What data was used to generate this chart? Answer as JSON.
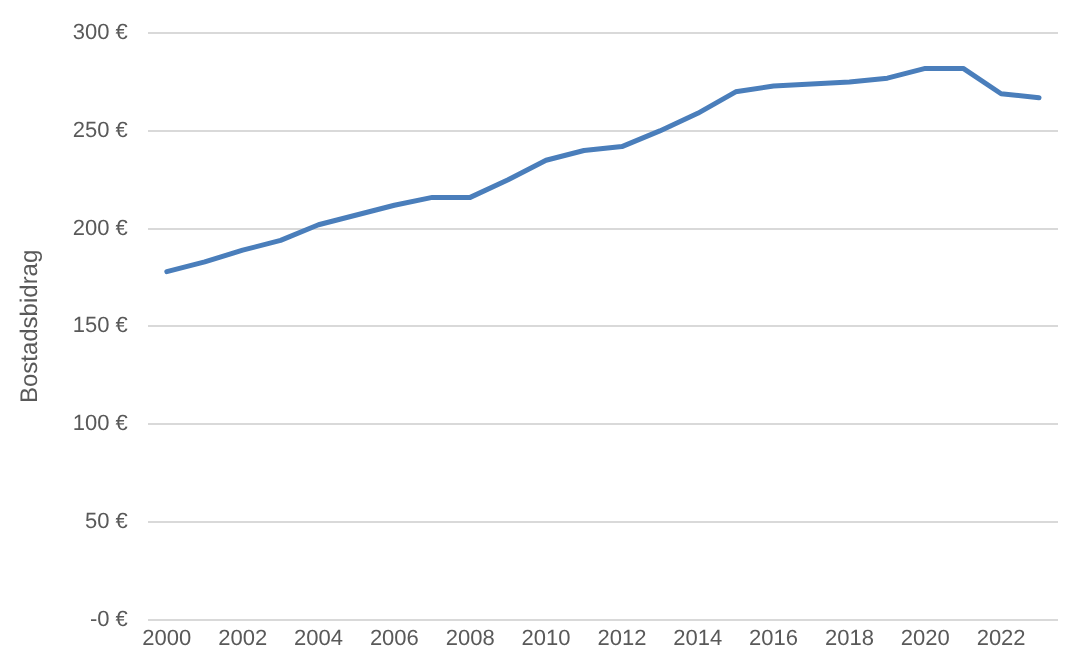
{
  "chart_data": {
    "type": "line",
    "ylabel": "Bostadsbidrag",
    "x": [
      2000,
      2001,
      2002,
      2003,
      2004,
      2005,
      2006,
      2007,
      2008,
      2009,
      2010,
      2011,
      2012,
      2013,
      2014,
      2015,
      2016,
      2017,
      2018,
      2019,
      2020,
      2021,
      2022,
      2023
    ],
    "series": [
      {
        "color": "#4a7ebb",
        "values": [
          178,
          183,
          189,
          194,
          202,
          207,
          212,
          216,
          216,
          225,
          235,
          240,
          242,
          250,
          259,
          270,
          273,
          274,
          275,
          277,
          282,
          282,
          269,
          267
        ]
      }
    ],
    "xlim": [
      1999.5,
      2023.5
    ],
    "xticks": [
      2000,
      2002,
      2004,
      2006,
      2008,
      2010,
      2012,
      2014,
      2016,
      2018,
      2020,
      2022
    ],
    "ylim": [
      0,
      300
    ],
    "yticks": [
      {
        "value": 0,
        "label": "-0 €"
      },
      {
        "value": 50,
        "label": "50 €"
      },
      {
        "value": 100,
        "label": "100 €"
      },
      {
        "value": 150,
        "label": "150 €"
      },
      {
        "value": 200,
        "label": "200 €"
      },
      {
        "value": 250,
        "label": "250 €"
      },
      {
        "value": 300,
        "label": "300 €"
      }
    ],
    "grid": "y",
    "legend": false,
    "marker": "none",
    "line_style": "solid"
  }
}
